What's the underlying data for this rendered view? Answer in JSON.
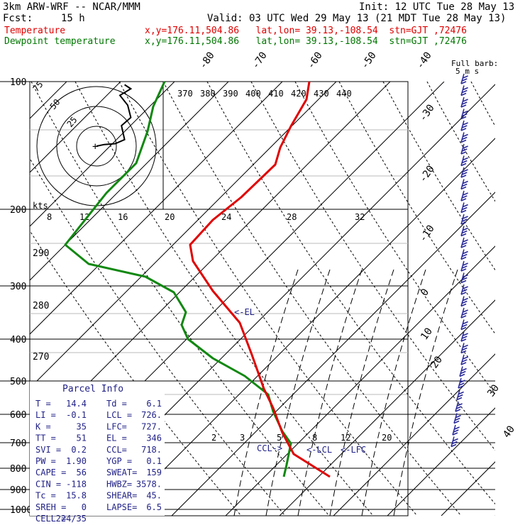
{
  "header": {
    "model": "3km ARW-WRF -- NCAR/MMM",
    "init": "Init: 12 UTC Tue 28 May 13",
    "fcst_label": "Fcst:",
    "fcst_value": "15 h",
    "valid": "Valid: 03 UTC Wed 29 May 13 (21 MDT Tue 28 May 13)",
    "temp_label": "Temperature",
    "temp_loc": "x,y=176.11,504.86   lat,lon= 39.13,-108.54  stn=GJT ,72476",
    "dew_label": "Dewpoint temperature",
    "dew_loc": "x,y=176.11,504.86   lat,lon= 39.13,-108.54  stn=GJT ,72476"
  },
  "colors": {
    "temperature": "#e00000",
    "dewpoint": "#118811",
    "text_blue": "#222288",
    "barb": "#2a2a99"
  },
  "chart_data": {
    "type": "line",
    "title": "Skew-T log-P sounding",
    "pressure_levels": [
      "100",
      "200",
      "290",
      "300",
      "280",
      "400",
      "270",
      "500",
      "600",
      "700",
      "800",
      "900",
      "1000"
    ],
    "isotherm_labels": [
      "-80",
      "-70",
      "-60",
      "-50",
      "-40",
      "-30",
      "-20",
      "-10",
      "0",
      "10",
      "20",
      "30",
      "40"
    ],
    "theta_labels": [
      "370",
      "380",
      "390",
      "400",
      "410",
      "420",
      "430",
      "440"
    ],
    "mixing_ratio_labels": [
      "8",
      "12",
      "16",
      "20",
      "24",
      "28",
      "32"
    ],
    "mixing_ratio_labels_low": [
      "2",
      "3",
      "5",
      "8",
      "12",
      "20"
    ],
    "series": [
      {
        "name": "Temperature",
        "unit": "C",
        "points": [
          [
            100,
            -62
          ],
          [
            150,
            -57
          ],
          [
            200,
            -52
          ],
          [
            250,
            -46
          ],
          [
            300,
            -38
          ],
          [
            400,
            -22
          ],
          [
            500,
            -10
          ],
          [
            600,
            -2
          ],
          [
            700,
            5
          ],
          [
            800,
            12
          ],
          [
            830,
            15
          ]
        ]
      },
      {
        "name": "Dewpoint temperature",
        "unit": "C",
        "points": [
          [
            100,
            -68
          ],
          [
            150,
            -72
          ],
          [
            200,
            -78
          ],
          [
            250,
            -85
          ],
          [
            300,
            -48
          ],
          [
            400,
            -34
          ],
          [
            500,
            -18
          ],
          [
            600,
            -7
          ],
          [
            700,
            0
          ],
          [
            800,
            4
          ],
          [
            830,
            5
          ]
        ]
      }
    ],
    "el_label": "<-EL",
    "ccl_label": "CCL->",
    "lcl_label": "<-LCL",
    "lfc_label": "<-LFC",
    "hodograph": {
      "unit_label": "kts",
      "rings": [
        "25",
        "50",
        "75"
      ],
      "trace": [
        [
          0,
          0
        ],
        [
          5,
          2
        ],
        [
          12,
          3
        ],
        [
          18,
          8
        ],
        [
          16,
          25
        ],
        [
          22,
          35
        ],
        [
          20,
          50
        ],
        [
          15,
          62
        ],
        [
          22,
          70
        ],
        [
          18,
          75
        ]
      ]
    },
    "barb_key": "Full barb: 5 m s-1",
    "parcel_info": {
      "title": "Parcel Info",
      "rows": [
        [
          "T  =",
          "14.4",
          "Td =",
          "6.1"
        ],
        [
          "LI =",
          "-0.1",
          "LCL =",
          "726."
        ],
        [
          "K  =",
          "35",
          "LFC=",
          "727."
        ],
        [
          "TT =",
          "51",
          "EL =",
          "346"
        ],
        [
          "SVI =",
          "0.2",
          "CCL=",
          "718."
        ],
        [
          "PW =",
          "1.90",
          "YGP =",
          "0.1"
        ],
        [
          "CAPE =",
          "56",
          "SWEAT=",
          "159"
        ],
        [
          "CIN =",
          "-118",
          "HWBZ=",
          "3578."
        ],
        [
          "Tc =",
          "15.8",
          "SHEAR=",
          "45."
        ],
        [
          "SREH =",
          "0",
          "LAPSE=",
          "6.5"
        ],
        [
          "CELL =",
          "224/35",
          "",
          ""
        ]
      ]
    }
  }
}
